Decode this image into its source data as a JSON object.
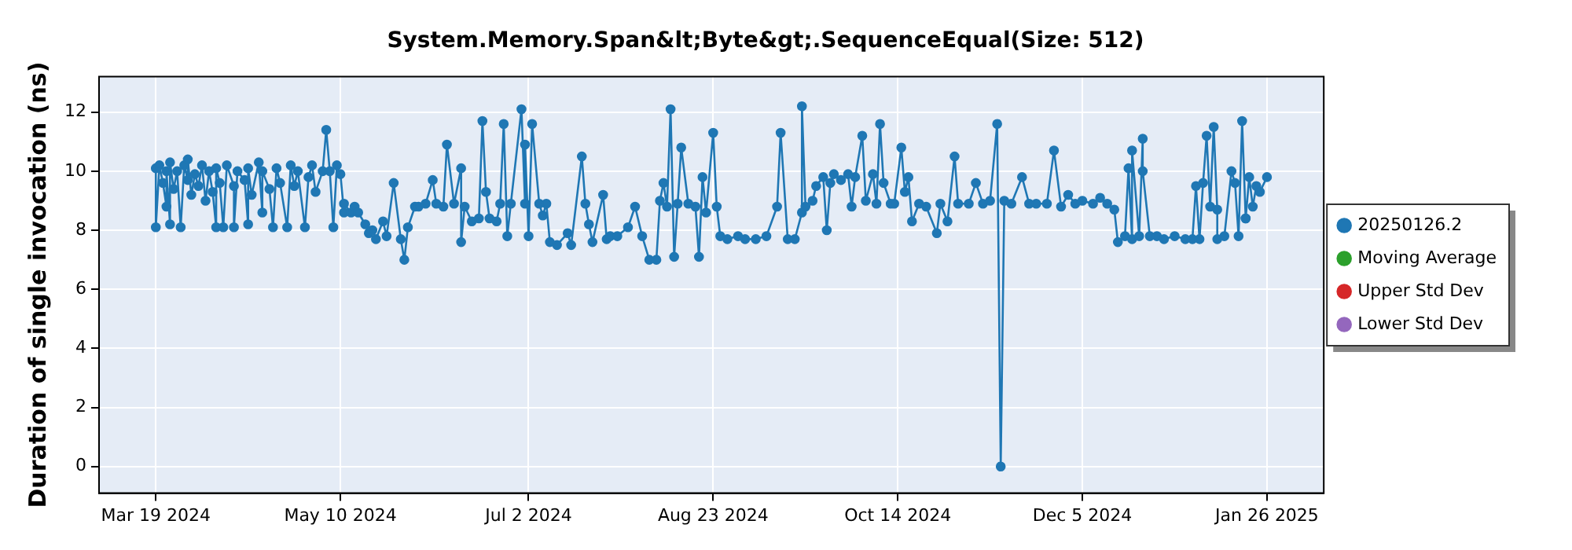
{
  "chart_data": {
    "type": "line",
    "title": "System.Memory.Span&lt;Byte&gt;.SequenceEqual(Size: 512)",
    "ylabel": "Duration of single invocation (ns)",
    "x": [
      "2024-03-19",
      "2024-03-19",
      "2024-03-20",
      "2024-03-21",
      "2024-03-22",
      "2024-03-22",
      "2024-03-23",
      "2024-03-23",
      "2024-03-24",
      "2024-03-25",
      "2024-03-26",
      "2024-03-27",
      "2024-03-28",
      "2024-03-28",
      "2024-03-29",
      "2024-03-30",
      "2024-03-31",
      "2024-04-01",
      "2024-04-02",
      "2024-04-03",
      "2024-04-04",
      "2024-04-05",
      "2024-04-05",
      "2024-04-06",
      "2024-04-07",
      "2024-04-08",
      "2024-04-10",
      "2024-04-10",
      "2024-04-11",
      "2024-04-13",
      "2024-04-14",
      "2024-04-14",
      "2024-04-15",
      "2024-04-17",
      "2024-04-18",
      "2024-04-18",
      "2024-04-20",
      "2024-04-21",
      "2024-04-22",
      "2024-04-23",
      "2024-04-25",
      "2024-04-26",
      "2024-04-27",
      "2024-04-28",
      "2024-04-30",
      "2024-05-01",
      "2024-05-02",
      "2024-05-03",
      "2024-05-05",
      "2024-05-06",
      "2024-05-07",
      "2024-05-08",
      "2024-05-09",
      "2024-05-10",
      "2024-05-11",
      "2024-05-11",
      "2024-05-13",
      "2024-05-14",
      "2024-05-15",
      "2024-05-17",
      "2024-05-18",
      "2024-05-19",
      "2024-05-20",
      "2024-05-22",
      "2024-05-23",
      "2024-05-25",
      "2024-05-27",
      "2024-05-28",
      "2024-05-29",
      "2024-05-31",
      "2024-06-01",
      "2024-06-03",
      "2024-06-05",
      "2024-06-06",
      "2024-06-08",
      "2024-06-09",
      "2024-06-11",
      "2024-06-13",
      "2024-06-13",
      "2024-06-14",
      "2024-06-16",
      "2024-06-18",
      "2024-06-19",
      "2024-06-20",
      "2024-06-21",
      "2024-06-23",
      "2024-06-24",
      "2024-06-25",
      "2024-06-26",
      "2024-06-27",
      "2024-06-30",
      "2024-07-01",
      "2024-07-01",
      "2024-07-02",
      "2024-07-03",
      "2024-07-05",
      "2024-07-06",
      "2024-07-07",
      "2024-07-08",
      "2024-07-10",
      "2024-07-13",
      "2024-07-14",
      "2024-07-17",
      "2024-07-18",
      "2024-07-19",
      "2024-07-20",
      "2024-07-23",
      "2024-07-24",
      "2024-07-25",
      "2024-07-27",
      "2024-07-30",
      "2024-08-01",
      "2024-08-03",
      "2024-08-05",
      "2024-08-07",
      "2024-08-08",
      "2024-08-09",
      "2024-08-10",
      "2024-08-11",
      "2024-08-12",
      "2024-08-13",
      "2024-08-14",
      "2024-08-16",
      "2024-08-18",
      "2024-08-19",
      "2024-08-20",
      "2024-08-21",
      "2024-08-23",
      "2024-08-24",
      "2024-08-25",
      "2024-08-27",
      "2024-08-30",
      "2024-09-01",
      "2024-09-04",
      "2024-09-07",
      "2024-09-10",
      "2024-09-11",
      "2024-09-13",
      "2024-09-15",
      "2024-09-17",
      "2024-09-17",
      "2024-09-18",
      "2024-09-20",
      "2024-09-21",
      "2024-09-23",
      "2024-09-24",
      "2024-09-25",
      "2024-09-26",
      "2024-09-28",
      "2024-09-30",
      "2024-10-01",
      "2024-10-02",
      "2024-10-04",
      "2024-10-05",
      "2024-10-07",
      "2024-10-08",
      "2024-10-09",
      "2024-10-10",
      "2024-10-12",
      "2024-10-13",
      "2024-10-15",
      "2024-10-16",
      "2024-10-17",
      "2024-10-18",
      "2024-10-20",
      "2024-10-22",
      "2024-10-25",
      "2024-10-26",
      "2024-10-28",
      "2024-10-30",
      "2024-10-31",
      "2024-11-03",
      "2024-11-05",
      "2024-11-07",
      "2024-11-09",
      "2024-11-11",
      "2024-11-12",
      "2024-11-13",
      "2024-11-15",
      "2024-11-18",
      "2024-11-20",
      "2024-11-22",
      "2024-11-25",
      "2024-11-27",
      "2024-11-29",
      "2024-12-01",
      "2024-12-03",
      "2024-12-05",
      "2024-12-08",
      "2024-12-10",
      "2024-12-12",
      "2024-12-14",
      "2024-12-15",
      "2024-12-17",
      "2024-12-18",
      "2024-12-19",
      "2024-12-19",
      "2024-12-21",
      "2024-12-22",
      "2024-12-22",
      "2024-12-24",
      "2024-12-26",
      "2024-12-28",
      "2024-12-31",
      "2025-01-03",
      "2025-01-05",
      "2025-01-06",
      "2025-01-07",
      "2025-01-08",
      "2025-01-09",
      "2025-01-10",
      "2025-01-11",
      "2025-01-12",
      "2025-01-12",
      "2025-01-14",
      "2025-01-16",
      "2025-01-17",
      "2025-01-18",
      "2025-01-19",
      "2025-01-20",
      "2025-01-20",
      "2025-01-21",
      "2025-01-22",
      "2025-01-23",
      "2025-01-24",
      "2025-01-26"
    ],
    "series": [
      {
        "name": "20250126.2",
        "color": "#1f77b4",
        "values": [
          10.1,
          8.1,
          10.2,
          9.6,
          8.8,
          10.0,
          8.2,
          10.3,
          9.4,
          10.0,
          8.1,
          10.2,
          9.7,
          10.4,
          9.2,
          9.9,
          9.5,
          10.2,
          9.0,
          10.0,
          9.3,
          8.1,
          10.1,
          9.6,
          8.1,
          10.2,
          9.5,
          8.1,
          10.0,
          9.7,
          8.2,
          10.1,
          9.2,
          10.3,
          8.6,
          10.0,
          9.4,
          8.1,
          10.1,
          9.6,
          8.1,
          10.2,
          9.5,
          10.0,
          8.1,
          9.8,
          10.2,
          9.3,
          10.0,
          11.4,
          10.0,
          8.1,
          10.2,
          9.9,
          8.6,
          8.9,
          8.6,
          8.8,
          8.6,
          8.2,
          7.9,
          8.0,
          7.7,
          8.3,
          7.8,
          9.6,
          7.7,
          7.0,
          8.1,
          8.8,
          8.8,
          8.9,
          9.7,
          8.9,
          8.8,
          10.9,
          8.9,
          10.1,
          7.6,
          8.8,
          8.3,
          8.4,
          11.7,
          9.3,
          8.4,
          8.3,
          8.9,
          11.6,
          7.8,
          8.9,
          12.1,
          8.9,
          10.9,
          7.8,
          11.6,
          8.9,
          8.5,
          8.9,
          7.6,
          7.5,
          7.9,
          7.5,
          10.5,
          8.9,
          8.2,
          7.6,
          9.2,
          7.7,
          7.8,
          7.8,
          8.1,
          8.8,
          7.8,
          7.0,
          7.0,
          9.0,
          9.6,
          8.8,
          12.1,
          7.1,
          8.9,
          10.8,
          8.9,
          8.8,
          7.1,
          9.8,
          8.6,
          11.3,
          8.8,
          7.8,
          7.7,
          7.8,
          7.7,
          7.7,
          7.8,
          8.8,
          11.3,
          7.7,
          7.7,
          8.6,
          12.2,
          8.8,
          9.0,
          9.5,
          9.8,
          8.0,
          9.6,
          9.9,
          9.7,
          9.9,
          8.8,
          9.8,
          11.2,
          9.0,
          9.9,
          8.9,
          11.6,
          9.6,
          8.9,
          8.9,
          10.8,
          9.3,
          9.8,
          8.3,
          8.9,
          8.8,
          7.9,
          8.9,
          8.3,
          10.5,
          8.9,
          8.9,
          9.6,
          8.9,
          9.0,
          11.6,
          0.0,
          9.0,
          8.9,
          9.8,
          8.9,
          8.9,
          8.9,
          10.7,
          8.8,
          9.2,
          8.9,
          9.0,
          8.9,
          9.1,
          8.9,
          8.7,
          7.6,
          7.8,
          10.1,
          7.7,
          10.7,
          7.8,
          11.1,
          10.0,
          7.8,
          7.8,
          7.7,
          7.8,
          7.7,
          7.7,
          9.5,
          7.7,
          9.6,
          11.2,
          8.8,
          11.5,
          8.7,
          7.7,
          7.8,
          10.0,
          9.6,
          7.8,
          11.7,
          8.4,
          8.4,
          9.8,
          8.8,
          9.5,
          9.3,
          9.8
        ]
      },
      {
        "name": "Moving Average",
        "color": "#2ca02c",
        "values": [
          null,
          null,
          null,
          null,
          null,
          null,
          null,
          null,
          null,
          null,
          null,
          null,
          null,
          null,
          null,
          null,
          null,
          null,
          null,
          null,
          null,
          null,
          null,
          null,
          null,
          null,
          null,
          null,
          null,
          null,
          null,
          null,
          null,
          null,
          null,
          null,
          null,
          null,
          null,
          null,
          null,
          null,
          null,
          null,
          null,
          null,
          null,
          null,
          null,
          null,
          null,
          null,
          null,
          null,
          null,
          null,
          null,
          null,
          null,
          null,
          null,
          null,
          null,
          null,
          null,
          null,
          null,
          null,
          null,
          null,
          null,
          null,
          null,
          null,
          null,
          null,
          null,
          null,
          null,
          null,
          null,
          null,
          null,
          null,
          null,
          null,
          null,
          null,
          null,
          null,
          null,
          null,
          null,
          null,
          null,
          null,
          null,
          null,
          null,
          null,
          null,
          null,
          null,
          null,
          null,
          null,
          null,
          null,
          null,
          null,
          null,
          null,
          null,
          null,
          null,
          null,
          null,
          null,
          null,
          null,
          null,
          null,
          null,
          null,
          null,
          null,
          null,
          null,
          null,
          null,
          null,
          null,
          null,
          null,
          null,
          null,
          null,
          null,
          null,
          null,
          null,
          null,
          null,
          null,
          null,
          null,
          null,
          null,
          null,
          null,
          null,
          null,
          null,
          null,
          null,
          null,
          null,
          null,
          null,
          null,
          null,
          null,
          null,
          null,
          null,
          null,
          null,
          null,
          null,
          null,
          null,
          null,
          null,
          null,
          null,
          null,
          null,
          null,
          null,
          null,
          null,
          null,
          null,
          null,
          null,
          null,
          null,
          null,
          null,
          null,
          null,
          null,
          null,
          null,
          null,
          null,
          null,
          null,
          null,
          null,
          null,
          null,
          null,
          null,
          null,
          null,
          null,
          null,
          null,
          null,
          null,
          null,
          null,
          null,
          null,
          null,
          null,
          null,
          null,
          null,
          null,
          null,
          null,
          null,
          null,
          null
        ]
      },
      {
        "name": "Upper Std Dev",
        "color": "#d62728",
        "values": [
          null,
          null,
          null,
          null,
          null,
          null,
          null,
          null,
          null,
          null,
          null,
          null,
          null,
          null,
          null,
          null,
          null,
          null,
          null,
          null,
          null,
          null,
          null,
          null,
          null,
          null,
          null,
          null,
          null,
          null,
          null,
          null,
          null,
          null,
          null,
          null,
          null,
          null,
          null,
          null,
          null,
          null,
          null,
          null,
          null,
          null,
          null,
          null,
          null,
          null,
          null,
          null,
          null,
          null,
          null,
          null,
          null,
          null,
          null,
          null,
          null,
          null,
          null,
          null,
          null,
          null,
          null,
          null,
          null,
          null,
          null,
          null,
          null,
          null,
          null,
          null,
          null,
          null,
          null,
          null,
          null,
          null,
          null,
          null,
          null,
          null,
          null,
          null,
          null,
          null,
          null,
          null,
          null,
          null,
          null,
          null,
          null,
          null,
          null,
          null,
          null,
          null,
          null,
          null,
          null,
          null,
          null,
          null,
          null,
          null,
          null,
          null,
          null,
          null,
          null,
          null,
          null,
          null,
          null,
          null,
          null,
          null,
          null,
          null,
          null,
          null,
          null,
          null,
          null,
          null,
          null,
          null,
          null,
          null,
          null,
          null,
          null,
          null,
          null,
          null,
          null,
          null,
          null,
          null,
          null,
          null,
          null,
          null,
          null,
          null,
          null,
          null,
          null,
          null,
          null,
          null,
          null,
          null,
          null,
          null,
          null,
          null,
          null,
          null,
          null,
          null,
          null,
          null,
          null,
          null,
          null,
          null,
          null,
          null,
          null,
          null,
          null,
          null,
          null,
          null,
          null,
          null,
          null,
          null,
          null,
          null,
          null,
          null,
          null,
          null,
          null,
          null,
          null,
          null,
          null,
          null,
          null,
          null,
          null,
          null,
          null,
          null,
          null,
          null,
          null,
          null,
          null,
          null,
          null,
          null,
          null,
          null,
          null,
          null,
          null,
          null,
          null,
          null,
          null,
          null,
          null,
          null,
          null,
          null,
          null,
          null
        ]
      },
      {
        "name": "Lower Std Dev",
        "color": "#9467bd",
        "values": [
          null,
          null,
          null,
          null,
          null,
          null,
          null,
          null,
          null,
          null,
          null,
          null,
          null,
          null,
          null,
          null,
          null,
          null,
          null,
          null,
          null,
          null,
          null,
          null,
          null,
          null,
          null,
          null,
          null,
          null,
          null,
          null,
          null,
          null,
          null,
          null,
          null,
          null,
          null,
          null,
          null,
          null,
          null,
          null,
          null,
          null,
          null,
          null,
          null,
          null,
          null,
          null,
          null,
          null,
          null,
          null,
          null,
          null,
          null,
          null,
          null,
          null,
          null,
          null,
          null,
          null,
          null,
          null,
          null,
          null,
          null,
          null,
          null,
          null,
          null,
          null,
          null,
          null,
          null,
          null,
          null,
          null,
          null,
          null,
          null,
          null,
          null,
          null,
          null,
          null,
          null,
          null,
          null,
          null,
          null,
          null,
          null,
          null,
          null,
          null,
          null,
          null,
          null,
          null,
          null,
          null,
          null,
          null,
          null,
          null,
          null,
          null,
          null,
          null,
          null,
          null,
          null,
          null,
          null,
          null,
          null,
          null,
          null,
          null,
          null,
          null,
          null,
          null,
          null,
          null,
          null,
          null,
          null,
          null,
          null,
          null,
          null,
          null,
          null,
          null,
          null,
          null,
          null,
          null,
          null,
          null,
          null,
          null,
          null,
          null,
          null,
          null,
          null,
          null,
          null,
          null,
          null,
          null,
          null,
          null,
          null,
          null,
          null,
          null,
          null,
          null,
          null,
          null,
          null,
          null,
          null,
          null,
          null,
          null,
          null,
          null,
          null,
          null,
          null,
          null,
          null,
          null,
          null,
          null,
          null,
          null,
          null,
          null,
          null,
          null,
          null,
          null,
          null,
          null,
          null,
          null,
          null,
          null,
          null,
          null,
          null,
          null,
          null,
          null,
          null,
          null,
          null,
          null,
          null,
          null,
          null,
          null,
          null,
          null,
          null,
          null,
          null,
          null,
          null,
          null,
          null,
          null,
          null,
          null,
          null,
          null
        ]
      }
    ],
    "xlim": [
      "2024-03-03",
      "2025-02-11"
    ],
    "xticks": [
      {
        "value": "2024-03-19",
        "label": "Mar 19 2024"
      },
      {
        "value": "2024-05-10",
        "label": "May 10 2024"
      },
      {
        "value": "2024-07-02",
        "label": "Jul 2 2024"
      },
      {
        "value": "2024-08-23",
        "label": "Aug 23 2024"
      },
      {
        "value": "2024-10-14",
        "label": "Oct 14 2024"
      },
      {
        "value": "2024-12-05",
        "label": "Dec 5 2024"
      },
      {
        "value": "2025-01-26",
        "label": "Jan 26 2025"
      }
    ],
    "ylim": [
      -0.9,
      13.2
    ],
    "yticks": [
      0,
      2,
      4,
      6,
      8,
      10,
      12
    ],
    "grid": true,
    "legend": "right",
    "marker": "circle",
    "line_style": "solid"
  }
}
